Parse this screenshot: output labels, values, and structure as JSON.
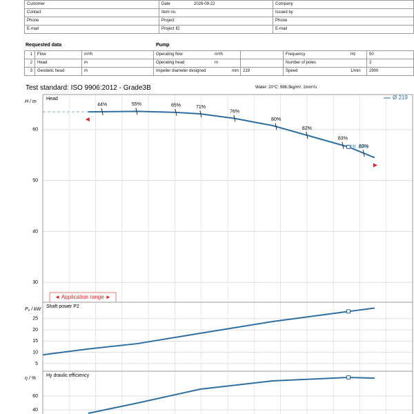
{
  "header": {
    "rows": [
      {
        "left": "Customer",
        "middle": "Date",
        "middle_value": "2026-09-22",
        "right": "Company"
      },
      {
        "left": "Contact",
        "middle": "Item no.",
        "right": "Issued by"
      },
      {
        "left": "Phone",
        "middle": "Project",
        "right": "Phone"
      },
      {
        "left": "E-mail",
        "middle": "Project ID",
        "right": "E-mail"
      }
    ]
  },
  "requested_data": {
    "title": "Requested data",
    "rows": [
      {
        "number": 1,
        "label": "Flow",
        "unit": "m³/h"
      },
      {
        "number": 2,
        "label": "Head",
        "unit": "m"
      },
      {
        "number": 3,
        "label": "Geodetic head",
        "unit": "m"
      }
    ]
  },
  "pump": {
    "title": "Pump",
    "rows": [
      {
        "label": "Operating flow",
        "unit": "m³/h"
      },
      {
        "label": "Operating head",
        "unit": "m"
      },
      {
        "label": "Impeller diameter designed",
        "unit": "mm",
        "value": 219
      }
    ]
  },
  "motor": {
    "rows": [
      {
        "label": "Frequency",
        "unit": "Hz",
        "value": 50
      },
      {
        "label": "Number of poles",
        "value": 2
      },
      {
        "label": "Speed",
        "unit": "1/min",
        "value": 2900
      }
    ]
  },
  "test_standard": "Test standard: ISO 9906:2012 - Grade3B",
  "fluid": "Water: 20°C; 998.3kg/m³; 1mm²/s",
  "chart_data": [
    {
      "type": "line",
      "title": "Head",
      "y_label": "H / m",
      "xlim": [
        0,
        140
      ],
      "ylim": [
        26.1,
        66.9
      ],
      "yticks": [
        30,
        40,
        50,
        60
      ],
      "grid": true,
      "x": [
        17.2,
        36,
        50.4,
        59.6,
        72.6,
        87,
        100,
        115.7,
        125.6
      ],
      "series": [
        {
          "name": "Ø 219",
          "color": "#2e6e9e",
          "values": [
            63.5,
            63.6,
            63.4,
            63.1,
            62.2,
            60.8,
            58.9,
            56.6,
            54.5
          ]
        }
      ],
      "efficiency_labels": {
        "x": [
          22.5,
          35.5,
          50.4,
          59.8,
          72.6,
          88.3,
          100,
          113.6,
          121.5
        ],
        "labels": [
          "44%",
          "55%",
          "65%",
          "71%",
          "76%",
          "80%",
          "82%",
          "83%",
          "83%"
        ]
      },
      "annotation": "Eff. 83%",
      "application_range": "◄ Application range ►",
      "duty_point": {
        "x": 115.7,
        "y": 56.6
      }
    },
    {
      "type": "line",
      "title": "Shaft power P2",
      "y_label": "P₂ / kW",
      "xlim": [
        0,
        140
      ],
      "ylim": [
        1.6,
        32.3
      ],
      "yticks": [
        5,
        10,
        15,
        20,
        25
      ],
      "grid": true,
      "x": [
        0,
        17.2,
        36,
        59.6,
        87,
        115.7,
        125.6
      ],
      "series": [
        {
          "name": "Ø 219",
          "color": "#2e6e9e",
          "values": [
            8.9,
            11.5,
            13.9,
            18.5,
            23.7,
            28.2,
            29.7
          ]
        }
      ],
      "duty_point": {
        "x": 115.7,
        "y": 28.2
      }
    },
    {
      "type": "line",
      "title": "Hy draulic efficiency",
      "y_label": "η / %",
      "xlim": [
        0,
        140
      ],
      "ylim": [
        34,
        96
      ],
      "yticks": [
        40,
        60
      ],
      "grid": true,
      "x": [
        17.2,
        36,
        59.6,
        87,
        115.7,
        125.6
      ],
      "series": [
        {
          "name": "Ø 219",
          "color": "#2e6e9e",
          "values": [
            35,
            50,
            70,
            82,
            87,
            86
          ]
        }
      ],
      "duty_point": {
        "x": 115.7,
        "y": 87
      }
    }
  ]
}
